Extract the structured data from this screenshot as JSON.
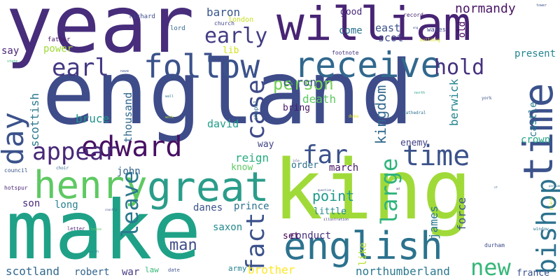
{
  "words": [
    {
      "text": "king",
      "color": "#a0da39"
    },
    {
      "text": "england",
      "color": "#3e4c8a"
    },
    {
      "text": "make",
      "color": "#1fa187"
    },
    {
      "text": "year",
      "color": "#472d7b"
    },
    {
      "text": "william",
      "color": "#482475"
    },
    {
      "text": "great",
      "color": "#2a9d8a"
    },
    {
      "text": "english",
      "color": "#2c728e"
    },
    {
      "text": "receive",
      "color": "#31688e"
    },
    {
      "text": "follow",
      "color": "#3b528b"
    },
    {
      "text": "time",
      "color": "#3b528b"
    },
    {
      "text": "edward",
      "color": "#471063"
    },
    {
      "text": "henry",
      "color": "#5ec962"
    },
    {
      "text": "day",
      "color": "#3b528b"
    },
    {
      "text": "earl",
      "color": "#443983"
    },
    {
      "text": "early",
      "color": "#433d84"
    },
    {
      "text": "appear",
      "color": "#482878"
    },
    {
      "text": "far",
      "color": "#3b528b"
    },
    {
      "text": "end",
      "color": "#31688e"
    },
    {
      "text": "hold",
      "color": "#46327e"
    },
    {
      "text": "case",
      "color": "#3e4a89"
    },
    {
      "text": "fact",
      "color": "#3b528b"
    },
    {
      "text": "bishop",
      "color": "#2c728e"
    },
    {
      "text": "leave",
      "color": "#2a788e"
    },
    {
      "text": "large",
      "color": "#2fb47c"
    },
    {
      "text": "new",
      "color": "#35b779"
    },
    {
      "text": "point",
      "color": "#1f9a8a"
    },
    {
      "text": "kingdom",
      "color": "#31688e"
    },
    {
      "text": "normandy",
      "color": "#471365"
    },
    {
      "text": "person",
      "color": "#73d056"
    },
    {
      "text": "baron",
      "color": "#39568c"
    },
    {
      "text": "death",
      "color": "#5ec962"
    },
    {
      "text": "chron",
      "color": "#3b528b"
    },
    {
      "text": "present",
      "color": "#25858e"
    },
    {
      "text": "scot",
      "color": "#3e4a89"
    },
    {
      "text": "east",
      "color": "#3b528b"
    },
    {
      "text": "come",
      "color": "#2c728e"
    },
    {
      "text": "good",
      "color": "#482878"
    },
    {
      "text": "say",
      "color": "#482475"
    },
    {
      "text": "power",
      "color": "#a0da39"
    },
    {
      "text": "lib",
      "color": "#d2e21b"
    },
    {
      "text": "bruce",
      "color": "#21918c"
    },
    {
      "text": "david",
      "color": "#1f9e89"
    },
    {
      "text": "scottish",
      "color": "#2a788e"
    },
    {
      "text": "thousand",
      "color": "#31688e"
    },
    {
      "text": "berwick",
      "color": "#25858e"
    },
    {
      "text": "castle",
      "color": "#2a788e"
    },
    {
      "text": "crown",
      "color": "#22a884"
    },
    {
      "text": "enemy",
      "color": "#424086"
    },
    {
      "text": "way",
      "color": "#414487"
    },
    {
      "text": "reign",
      "color": "#27ad81"
    },
    {
      "text": "march",
      "color": "#471365"
    },
    {
      "text": "order",
      "color": "#2d708e"
    },
    {
      "text": "know",
      "color": "#5ec962"
    },
    {
      "text": "john",
      "color": "#33638d"
    },
    {
      "text": "son",
      "color": "#472a7a"
    },
    {
      "text": "long",
      "color": "#26828e"
    },
    {
      "text": "danes",
      "color": "#3b528b"
    },
    {
      "text": "prince",
      "color": "#2c728e"
    },
    {
      "text": "little",
      "color": "#238a8d"
    },
    {
      "text": "james",
      "color": "#2a788e"
    },
    {
      "text": "force",
      "color": "#3b528b"
    },
    {
      "text": "saxon",
      "color": "#238a8d"
    },
    {
      "text": "conduct",
      "color": "#46327e"
    },
    {
      "text": "set",
      "color": "#440154"
    },
    {
      "text": "like",
      "color": "#b5de2b"
    },
    {
      "text": "man",
      "color": "#3e4c8a"
    },
    {
      "text": "brother",
      "color": "#fde725"
    },
    {
      "text": "northumberland",
      "color": "#2a788e"
    },
    {
      "text": "scotland",
      "color": "#31688e"
    },
    {
      "text": "robert",
      "color": "#33638d"
    },
    {
      "text": "war",
      "color": "#443a83"
    },
    {
      "text": "law",
      "color": "#37b878"
    },
    {
      "text": "army",
      "color": "#25838e"
    },
    {
      "text": "france",
      "color": "#3b528b"
    },
    {
      "text": "bring",
      "color": "#481769"
    },
    {
      "text": "old",
      "color": "#440154"
    },
    {
      "text": "richard",
      "color": "#3e4c8a"
    },
    {
      "text": "london",
      "color": "#c8e020"
    },
    {
      "text": "lord",
      "color": "#31688e"
    },
    {
      "text": "church",
      "color": "#414487"
    },
    {
      "text": "father",
      "color": "#48186a"
    },
    {
      "text": "footnote",
      "color": "#463480"
    },
    {
      "text": "record",
      "color": "#482475"
    },
    {
      "text": "wales",
      "color": "#404688"
    },
    {
      "text": "tower",
      "color": "#3b528b"
    },
    {
      "text": "building",
      "color": "#d2e21b"
    },
    {
      "text": "state",
      "color": "#2fb47c"
    },
    {
      "text": "nave",
      "color": "#3b528b"
    },
    {
      "text": "wall",
      "color": "#2a788e"
    },
    {
      "text": "north",
      "color": "#1f9e89"
    },
    {
      "text": "york",
      "color": "#3b528b"
    },
    {
      "text": "cathedral",
      "color": "#2c728e"
    },
    {
      "text": "duke",
      "color": "#e5e419"
    },
    {
      "text": "chapel",
      "color": "#31688e"
    },
    {
      "text": "council",
      "color": "#3b528b"
    },
    {
      "text": "choir",
      "color": "#31688e"
    },
    {
      "text": "hotspur",
      "color": "#482878"
    },
    {
      "text": "letter",
      "color": "#482475"
    },
    {
      "text": "house",
      "color": "#5ec962"
    },
    {
      "text": "south",
      "color": "#25858e"
    },
    {
      "text": "durham",
      "color": "#3e4a89"
    },
    {
      "text": "date",
      "color": "#3b528b"
    },
    {
      "text": "illustration",
      "color": "#443983"
    },
    {
      "text": "question",
      "color": "#3b528b"
    },
    {
      "text": "window",
      "color": "#2c728e"
    },
    {
      "text": "place",
      "color": "#c8e020"
    },
    {
      "text": "parliament",
      "color": "#2a788e"
    },
    {
      "text": "work",
      "color": "#b5de2b"
    },
    {
      "text": "country",
      "color": "#3b528b"
    },
    {
      "text": "ad",
      "color": "#48186a"
    },
    {
      "text": "isle",
      "color": "#443983"
    },
    {
      "text": "st",
      "color": "#33638d"
    },
    {
      "text": "eng",
      "color": "#3b528b"
    }
  ]
}
